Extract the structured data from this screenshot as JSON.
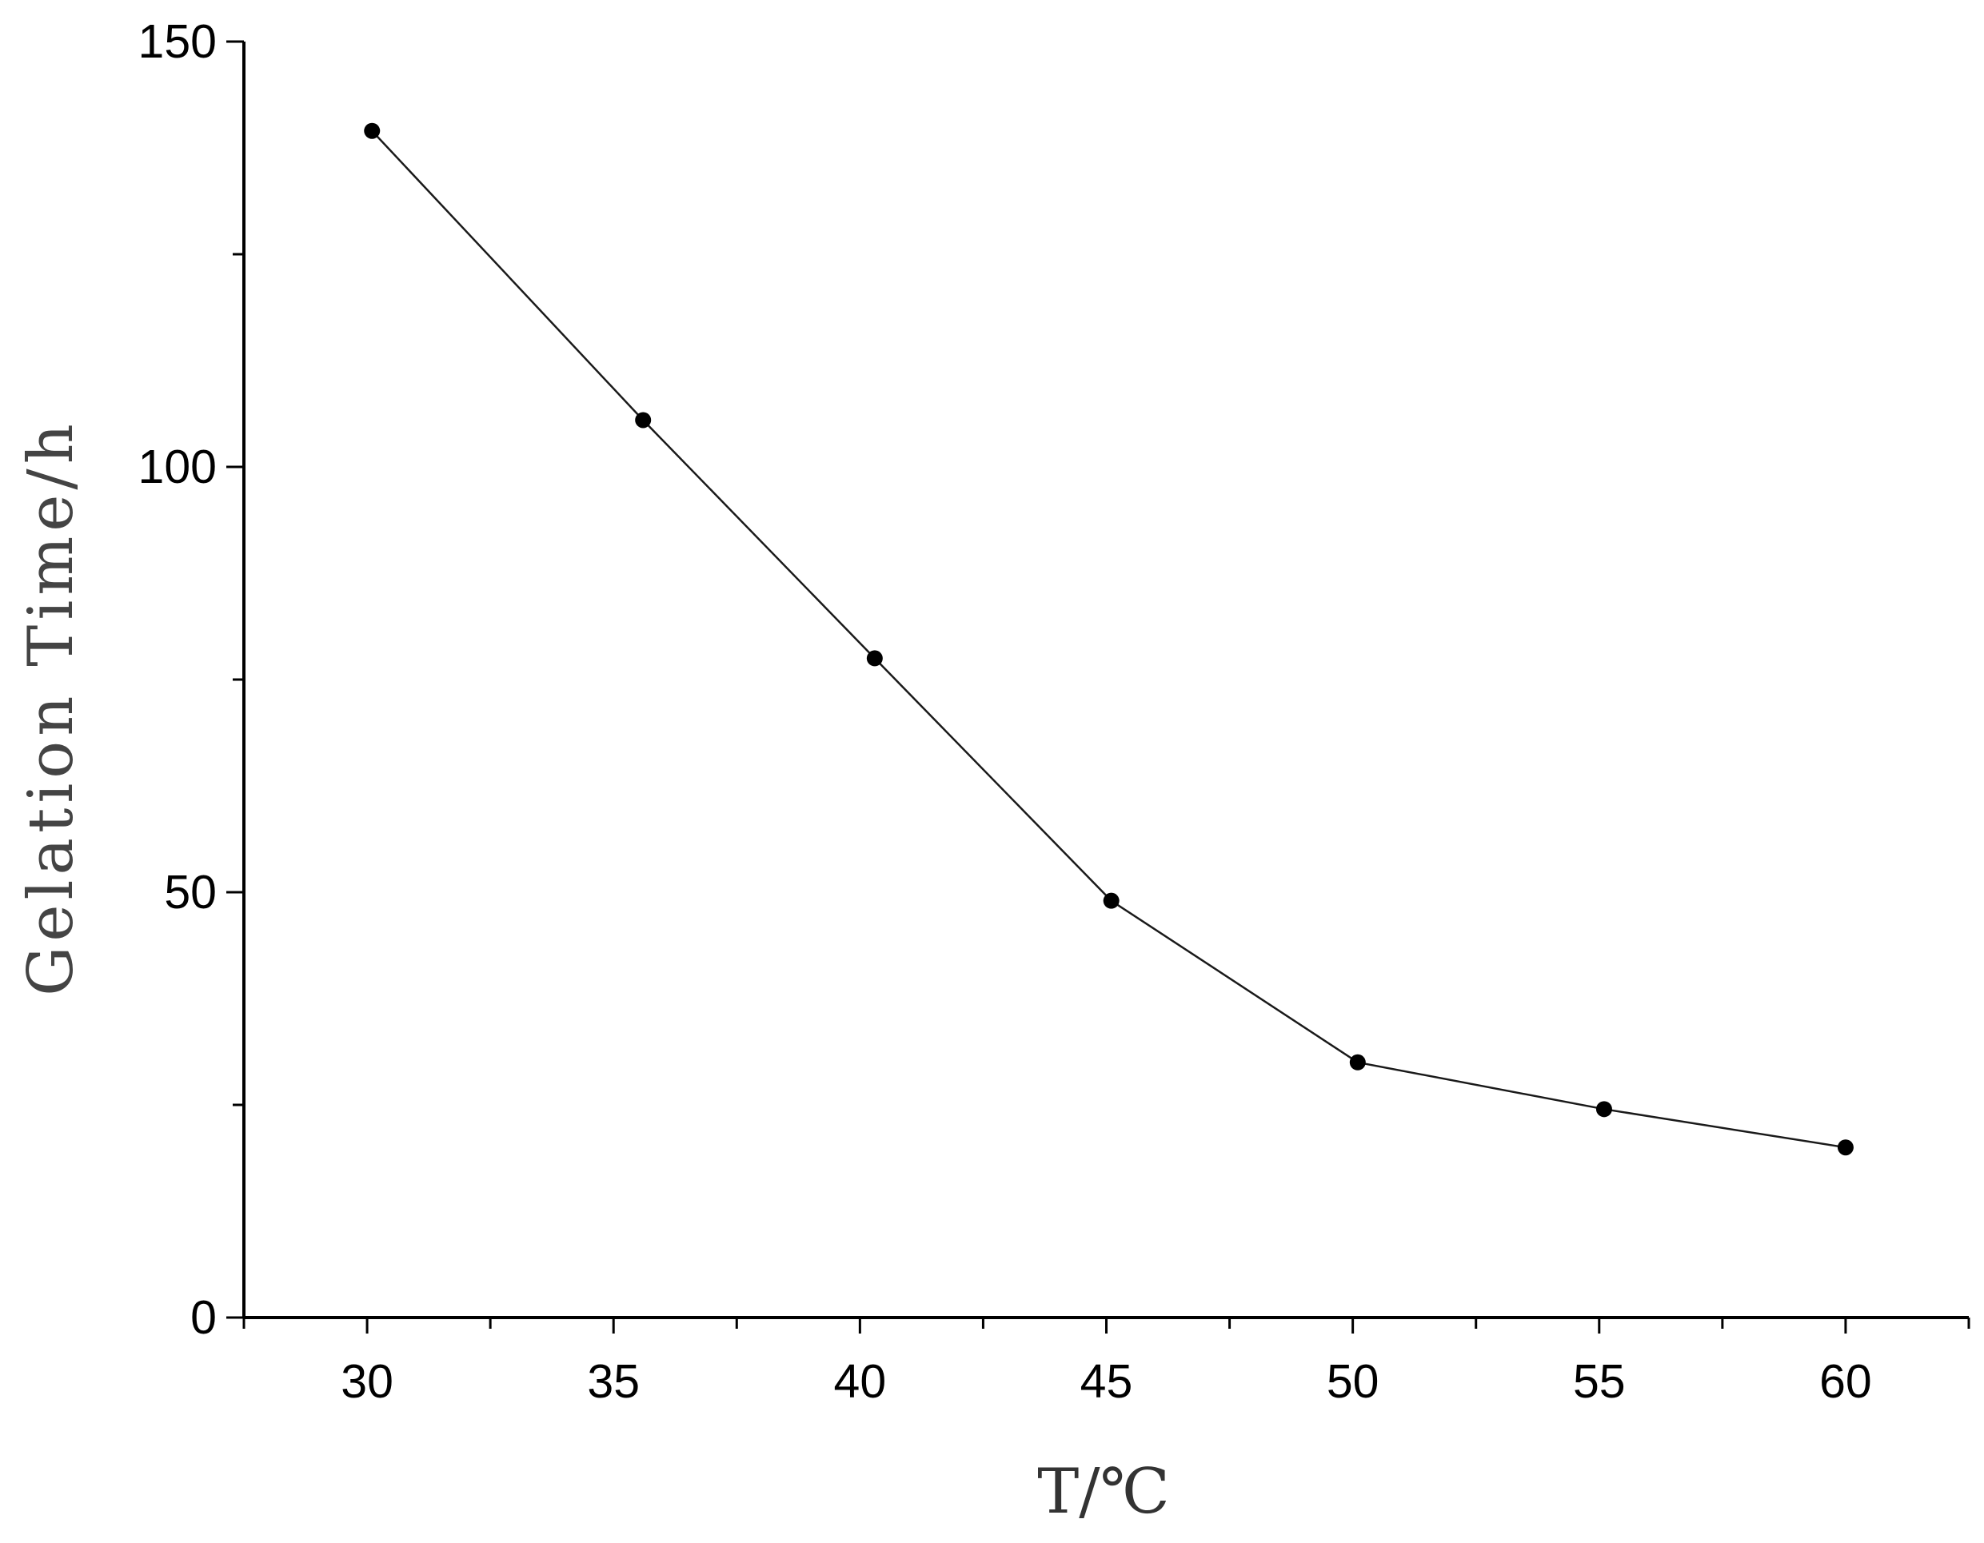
{
  "chart_data": {
    "type": "line",
    "xlabel": "T/℃",
    "ylabel": "Gelation Time/h",
    "xlim": [
      27.5,
      62.5
    ],
    "ylim": [
      0,
      150
    ],
    "x_ticks": [
      30,
      35,
      40,
      45,
      50,
      55,
      60
    ],
    "x_tick_labels": [
      "30",
      "35",
      "40",
      "45",
      "50",
      "55",
      "60"
    ],
    "y_ticks": [
      0,
      50,
      100,
      150
    ],
    "y_tick_labels": [
      "0",
      "50",
      "100",
      "150"
    ],
    "x_minor_step": 2.5,
    "y_minor_step": 25,
    "grid": false,
    "series": [
      {
        "x": [
          30.1,
          35.6,
          40.3,
          45.1,
          50.1,
          55.1,
          60.0
        ],
        "y": [
          139.5,
          105.5,
          77.5,
          49,
          30,
          24.5,
          20
        ]
      }
    ]
  }
}
